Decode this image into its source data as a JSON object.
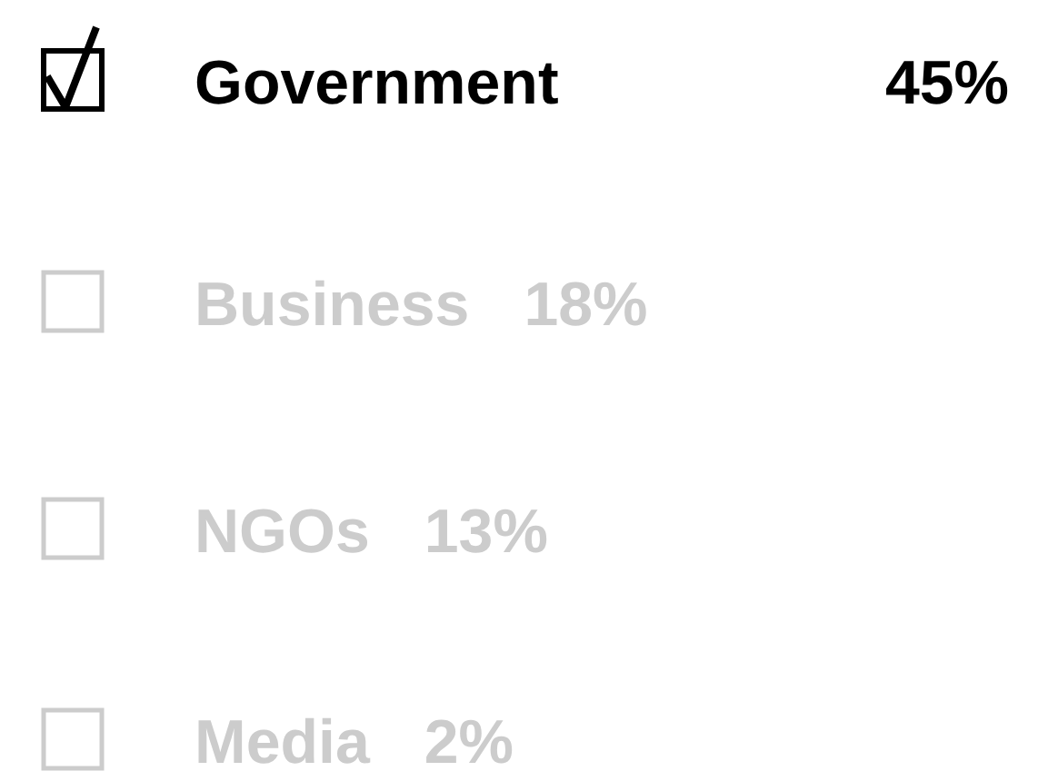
{
  "chart_data": {
    "type": "other",
    "categories": [
      "Government",
      "Business",
      "NGOs",
      "Media"
    ],
    "values": [
      45,
      18,
      13,
      2
    ],
    "value_labels": [
      "45%",
      "18%",
      "13%",
      "2%"
    ],
    "colors": [
      "#000000",
      "#cccccc",
      "#cccccc",
      "#cccccc"
    ]
  }
}
